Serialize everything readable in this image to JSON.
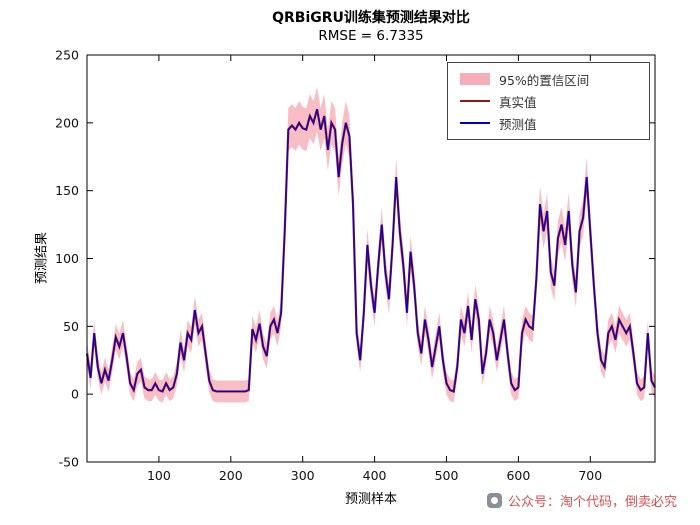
{
  "figure": {
    "title": "QRBiGRU训练集预测结果对比",
    "subtitle": "RMSE = 6.7335",
    "xlabel": "预测样本",
    "ylabel": "预测结果"
  },
  "legend": {
    "items": [
      {
        "label": "95%的置信区间",
        "swatch": "band"
      },
      {
        "label": "真实值",
        "swatch": "true_line"
      },
      {
        "label": "预测值",
        "swatch": "pred_line"
      }
    ]
  },
  "watermark": {
    "text": "公众号：淘个代码，倒卖必究"
  },
  "colors": {
    "band": "#f5aeb8",
    "true_line": "#8b1a1a",
    "pred_line": "#0000cd",
    "watermark": "#d94f4f",
    "axis": "#000000"
  },
  "chart_data": {
    "type": "line",
    "title": "QRBiGRU训练集预测结果对比",
    "subtitle": "RMSE = 6.7335",
    "xlabel": "预测样本",
    "ylabel": "预测结果",
    "grid": false,
    "legend_position": "top-right",
    "xlim": [
      0,
      790
    ],
    "ylim": [
      -50,
      250
    ],
    "xticks": [
      100,
      200,
      300,
      400,
      500,
      600,
      700
    ],
    "yticks": [
      -50,
      0,
      50,
      100,
      150,
      200,
      250
    ],
    "x_start": 0,
    "x_step": 5,
    "series": [
      {
        "name": "真实值",
        "color": "#8b1a1a"
      },
      {
        "name": "预测值",
        "color": "#0000cd"
      }
    ],
    "values": [
      30,
      12,
      45,
      20,
      8,
      18,
      10,
      25,
      42,
      35,
      45,
      28,
      8,
      3,
      15,
      18,
      5,
      3,
      3,
      8,
      3,
      2,
      8,
      3,
      5,
      15,
      38,
      25,
      45,
      40,
      62,
      45,
      50,
      30,
      10,
      3,
      2,
      2,
      2,
      2,
      2,
      2,
      2,
      2,
      2,
      3,
      48,
      40,
      52,
      35,
      28,
      50,
      55,
      45,
      60,
      120,
      195,
      198,
      195,
      200,
      196,
      195,
      205,
      200,
      210,
      195,
      205,
      180,
      200,
      195,
      160,
      185,
      200,
      190,
      140,
      45,
      25,
      60,
      110,
      80,
      60,
      95,
      125,
      90,
      70,
      110,
      160,
      120,
      95,
      60,
      105,
      80,
      45,
      30,
      55,
      40,
      20,
      35,
      50,
      25,
      8,
      3,
      2,
      20,
      55,
      45,
      65,
      40,
      70,
      55,
      15,
      30,
      55,
      45,
      25,
      40,
      55,
      30,
      8,
      3,
      5,
      45,
      55,
      50,
      48,
      85,
      140,
      120,
      135,
      90,
      80,
      115,
      125,
      110,
      135,
      95,
      75,
      120,
      130,
      160,
      120,
      80,
      45,
      25,
      20,
      45,
      50,
      40,
      55,
      50,
      45,
      50,
      30,
      8,
      3,
      5,
      45,
      10,
      5
    ],
    "ci": {
      "label": "95%的置信区间",
      "base_halfwidth": 8,
      "scale": 0.04,
      "color": "#f5aeb8"
    }
  }
}
